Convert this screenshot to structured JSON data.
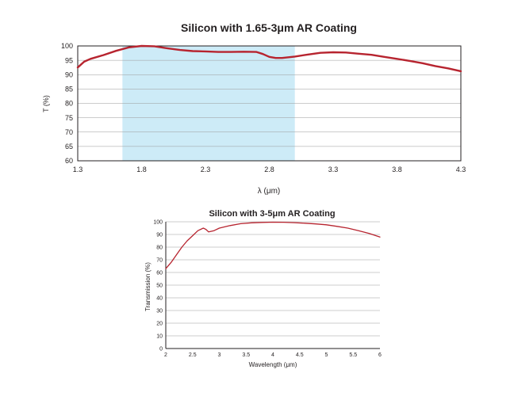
{
  "chart_data": [
    {
      "type": "line",
      "title": "Silicon with 1.65-3μm AR Coating",
      "xlabel": "λ (μm)",
      "ylabel": "T (%)",
      "xlim": [
        1.3,
        4.3
      ],
      "ylim": [
        60,
        100
      ],
      "x_ticks": [
        "1.3",
        "1.8",
        "2.3",
        "2.8",
        "3.3",
        "3.8",
        "4.3"
      ],
      "y_ticks": [
        "60",
        "65",
        "70",
        "75",
        "80",
        "85",
        "90",
        "95",
        "100"
      ],
      "grid": true,
      "highlight_band": [
        1.65,
        3.0
      ],
      "series_color": "#b7242f",
      "band_color": "#cdebf7",
      "series": [
        {
          "x": [
            1.3,
            1.35,
            1.4,
            1.5,
            1.6,
            1.7,
            1.8,
            1.9,
            2.0,
            2.1,
            2.2,
            2.3,
            2.4,
            2.5,
            2.6,
            2.7,
            2.75,
            2.8,
            2.85,
            2.9,
            3.0,
            3.1,
            3.2,
            3.3,
            3.4,
            3.5,
            3.6,
            3.7,
            3.8,
            3.9,
            4.0,
            4.1,
            4.2,
            4.3
          ],
          "y": [
            92.5,
            94.5,
            95.5,
            96.8,
            98.3,
            99.5,
            100.0,
            99.9,
            99.2,
            98.6,
            98.2,
            98.1,
            97.9,
            97.9,
            98.0,
            97.9,
            97.2,
            96.2,
            95.8,
            95.8,
            96.3,
            97.0,
            97.6,
            97.8,
            97.7,
            97.3,
            96.9,
            96.2,
            95.5,
            94.8,
            94.0,
            93.0,
            92.2,
            91.2
          ]
        }
      ]
    },
    {
      "type": "line",
      "title": "Silicon with 3-5μm AR Coating",
      "xlabel": "Wavelength (μm)",
      "ylabel": "Transmission (%)",
      "xlim": [
        2,
        6
      ],
      "ylim": [
        0,
        100
      ],
      "x_ticks": [
        "2",
        "2.5",
        "3",
        "3.5",
        "4",
        "4.5",
        "5",
        "5.5",
        "6"
      ],
      "y_ticks": [
        "0",
        "10",
        "20",
        "30",
        "40",
        "50",
        "60",
        "70",
        "80",
        "90",
        "100"
      ],
      "grid": true,
      "series_color": "#b7242f",
      "series": [
        {
          "x": [
            2.0,
            2.1,
            2.2,
            2.3,
            2.4,
            2.5,
            2.6,
            2.7,
            2.75,
            2.8,
            2.9,
            3.0,
            3.2,
            3.4,
            3.6,
            3.8,
            4.0,
            4.2,
            4.4,
            4.6,
            4.8,
            5.0,
            5.2,
            5.4,
            5.6,
            5.8,
            6.0
          ],
          "y": [
            63,
            68,
            74,
            80,
            85,
            89,
            93,
            95,
            94,
            92,
            93,
            95,
            97,
            98.5,
            99.2,
            99.5,
            99.7,
            99.6,
            99.3,
            98.9,
            98.3,
            97.6,
            96.4,
            95.0,
            93.0,
            90.8,
            88.0
          ]
        }
      ]
    }
  ]
}
